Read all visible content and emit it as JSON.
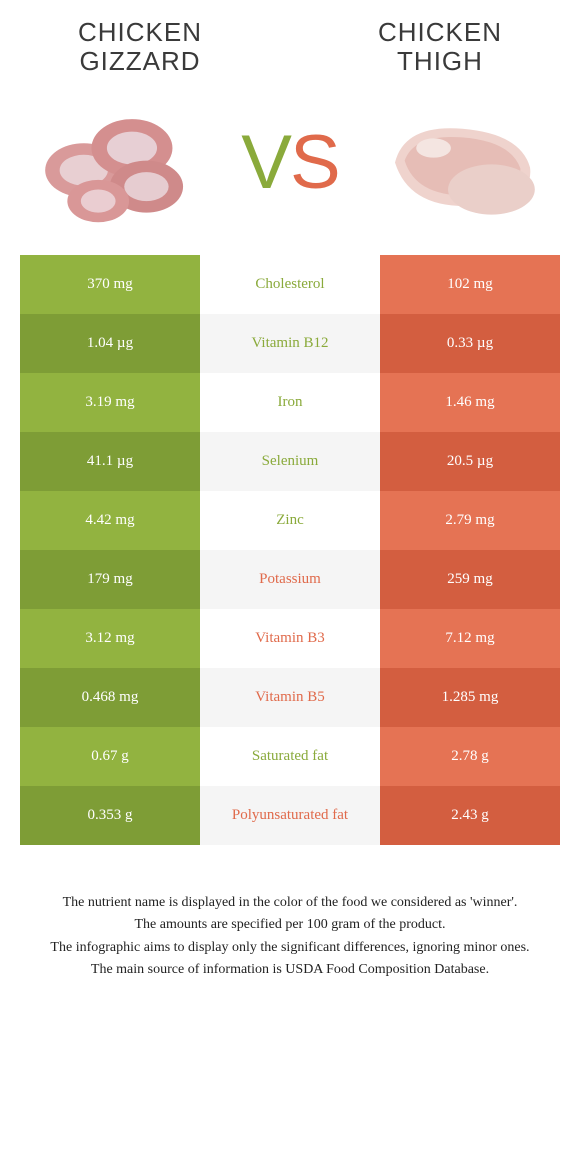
{
  "colors": {
    "green": "#8aaa3b",
    "green_dark": "#7e9d36",
    "green_light": "#92b340",
    "orange": "#e06a4b",
    "orange_dark": "#d35e40",
    "orange_light": "#e57354",
    "row_alt_bg": "#f5f5f5",
    "bg": "#ffffff",
    "text": "#333333"
  },
  "left": {
    "title": "CHICKEN GIZZARD"
  },
  "right": {
    "title": "CHICKEN THIGH"
  },
  "vs": {
    "v": "V",
    "s": "S"
  },
  "rows": [
    {
      "nutrient": "Cholesterol",
      "winner": "left",
      "left": "370 mg",
      "right": "102 mg"
    },
    {
      "nutrient": "Vitamin B12",
      "winner": "left",
      "left": "1.04 µg",
      "right": "0.33 µg"
    },
    {
      "nutrient": "Iron",
      "winner": "left",
      "left": "3.19 mg",
      "right": "1.46 mg"
    },
    {
      "nutrient": "Selenium",
      "winner": "left",
      "left": "41.1 µg",
      "right": "20.5 µg"
    },
    {
      "nutrient": "Zinc",
      "winner": "left",
      "left": "4.42 mg",
      "right": "2.79 mg"
    },
    {
      "nutrient": "Potassium",
      "winner": "right",
      "left": "179 mg",
      "right": "259 mg"
    },
    {
      "nutrient": "Vitamin B3",
      "winner": "right",
      "left": "3.12 mg",
      "right": "7.12 mg"
    },
    {
      "nutrient": "Vitamin B5",
      "winner": "right",
      "left": "0.468 mg",
      "right": "1.285 mg"
    },
    {
      "nutrient": "Saturated fat",
      "winner": "left",
      "left": "0.67 g",
      "right": "2.78 g"
    },
    {
      "nutrient": "Polyunsaturated fat",
      "winner": "right",
      "left": "0.353 g",
      "right": "2.43 g"
    }
  ],
  "footnotes": [
    "The nutrient name is displayed in the color of the food we considered as 'winner'.",
    "The amounts are specified per 100 gram of the product.",
    "The infographic aims to display only the significant differences, ignoring minor ones.",
    "The main source of information is USDA Food Composition Database."
  ]
}
